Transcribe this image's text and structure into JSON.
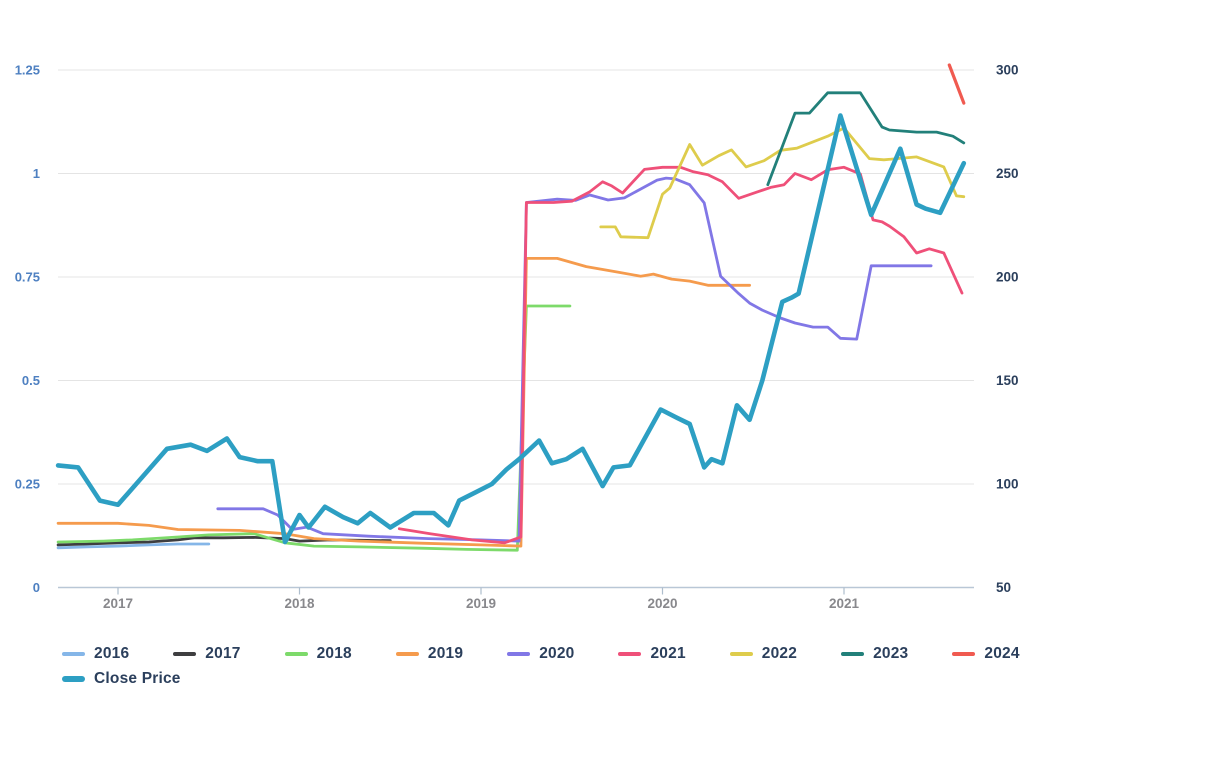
{
  "chart_data": {
    "type": "line",
    "title": "",
    "xlabel": "",
    "ylabel_left": "",
    "ylabel_right": "",
    "grid": true,
    "legend_position": "bottom",
    "x_axis": {
      "tick_labels": [
        "2017",
        "2018",
        "2019",
        "2020",
        "2021"
      ],
      "tick_values": [
        2017,
        2018,
        2019,
        2020,
        2021
      ],
      "range": [
        2016.65,
        2021.73
      ]
    },
    "y_axis_left": {
      "tick_labels": [
        "0",
        "0.25",
        "0.5",
        "0.75",
        "1",
        "1.25"
      ],
      "tick_values": [
        0,
        0.25,
        0.5,
        0.75,
        1,
        1.25
      ],
      "range": [
        0,
        1.3
      ],
      "label_color": "#4e80c1"
    },
    "y_axis_right": {
      "tick_labels": [
        "50",
        "100",
        "150",
        "200",
        "250",
        "300"
      ],
      "tick_values": [
        50,
        100,
        150,
        200,
        250,
        300
      ],
      "range": [
        50,
        310
      ],
      "label_color": "#2b3f5c"
    },
    "series": [
      {
        "name": "2016",
        "color": "#85b6e8",
        "width": 2.8,
        "axis": "left",
        "points": [
          [
            2016.67,
            0.096
          ],
          [
            2016.83,
            0.098
          ],
          [
            2017.0,
            0.1
          ],
          [
            2017.17,
            0.103
          ],
          [
            2017.33,
            0.105
          ],
          [
            2017.5,
            0.105
          ]
        ]
      },
      {
        "name": "2017",
        "color": "#3e3e40",
        "width": 2.8,
        "axis": "left",
        "points": [
          [
            2016.67,
            0.103
          ],
          [
            2016.83,
            0.105
          ],
          [
            2017.0,
            0.108
          ],
          [
            2017.17,
            0.11
          ],
          [
            2017.33,
            0.115
          ],
          [
            2017.42,
            0.12
          ],
          [
            2017.58,
            0.12
          ],
          [
            2017.75,
            0.121
          ],
          [
            2017.92,
            0.118
          ],
          [
            2018.0,
            0.112
          ],
          [
            2018.17,
            0.115
          ],
          [
            2018.33,
            0.114
          ],
          [
            2018.5,
            0.113
          ]
        ]
      },
      {
        "name": "2018",
        "color": "#7dda6a",
        "width": 2.8,
        "axis": "left",
        "points": [
          [
            2016.67,
            0.11
          ],
          [
            2016.92,
            0.112
          ],
          [
            2017.08,
            0.115
          ],
          [
            2017.33,
            0.122
          ],
          [
            2017.5,
            0.127
          ],
          [
            2017.75,
            0.13
          ],
          [
            2017.92,
            0.108
          ],
          [
            2018.08,
            0.1
          ],
          [
            2018.33,
            0.098
          ],
          [
            2018.67,
            0.095
          ],
          [
            2018.92,
            0.092
          ],
          [
            2019.2,
            0.09
          ],
          [
            2019.25,
            0.68
          ],
          [
            2019.49,
            0.68
          ]
        ]
      },
      {
        "name": "2019",
        "color": "#f59b4d",
        "width": 2.8,
        "axis": "left",
        "points": [
          [
            2016.67,
            0.155
          ],
          [
            2017.0,
            0.155
          ],
          [
            2017.17,
            0.15
          ],
          [
            2017.33,
            0.14
          ],
          [
            2017.67,
            0.138
          ],
          [
            2017.92,
            0.13
          ],
          [
            2018.08,
            0.118
          ],
          [
            2018.33,
            0.112
          ],
          [
            2018.67,
            0.107
          ],
          [
            2019.0,
            0.103
          ],
          [
            2019.22,
            0.1
          ],
          [
            2019.25,
            0.795
          ],
          [
            2019.42,
            0.795
          ],
          [
            2019.58,
            0.775
          ],
          [
            2019.75,
            0.762
          ],
          [
            2019.88,
            0.752
          ],
          [
            2019.95,
            0.757
          ],
          [
            2020.05,
            0.745
          ],
          [
            2020.15,
            0.74
          ],
          [
            2020.25,
            0.73
          ],
          [
            2020.48,
            0.73
          ]
        ]
      },
      {
        "name": "2020",
        "color": "#8177e6",
        "width": 2.8,
        "axis": "left",
        "points": [
          [
            2017.55,
            0.19
          ],
          [
            2017.8,
            0.19
          ],
          [
            2017.88,
            0.175
          ],
          [
            2017.96,
            0.14
          ],
          [
            2018.04,
            0.146
          ],
          [
            2018.13,
            0.13
          ],
          [
            2018.38,
            0.124
          ],
          [
            2018.71,
            0.118
          ],
          [
            2019.0,
            0.115
          ],
          [
            2019.21,
            0.112
          ],
          [
            2019.25,
            0.93
          ],
          [
            2019.42,
            0.938
          ],
          [
            2019.52,
            0.935
          ],
          [
            2019.6,
            0.948
          ],
          [
            2019.7,
            0.936
          ],
          [
            2019.79,
            0.941
          ],
          [
            2019.97,
            0.984
          ],
          [
            2020.02,
            0.989
          ],
          [
            2020.07,
            0.987
          ],
          [
            2020.15,
            0.973
          ],
          [
            2020.23,
            0.929
          ],
          [
            2020.32,
            0.752
          ],
          [
            2020.42,
            0.71
          ],
          [
            2020.48,
            0.687
          ],
          [
            2020.55,
            0.67
          ],
          [
            2020.65,
            0.651
          ],
          [
            2020.73,
            0.639
          ],
          [
            2020.83,
            0.629
          ],
          [
            2020.91,
            0.629
          ],
          [
            2020.98,
            0.602
          ],
          [
            2021.07,
            0.6
          ],
          [
            2021.15,
            0.777
          ],
          [
            2021.48,
            0.777
          ]
        ]
      },
      {
        "name": "2021",
        "color": "#ef5079",
        "width": 2.8,
        "axis": "left",
        "points": [
          [
            2018.55,
            0.142
          ],
          [
            2018.72,
            0.13
          ],
          [
            2018.95,
            0.115
          ],
          [
            2019.13,
            0.108
          ],
          [
            2019.22,
            0.122
          ],
          [
            2019.25,
            0.93
          ],
          [
            2019.4,
            0.93
          ],
          [
            2019.5,
            0.933
          ],
          [
            2019.6,
            0.956
          ],
          [
            2019.67,
            0.98
          ],
          [
            2019.72,
            0.97
          ],
          [
            2019.78,
            0.953
          ],
          [
            2019.9,
            1.01
          ],
          [
            2020.0,
            1.015
          ],
          [
            2020.1,
            1.015
          ],
          [
            2020.17,
            1.004
          ],
          [
            2020.25,
            0.997
          ],
          [
            2020.33,
            0.98
          ],
          [
            2020.42,
            0.94
          ],
          [
            2020.52,
            0.955
          ],
          [
            2020.6,
            0.967
          ],
          [
            2020.67,
            0.973
          ],
          [
            2020.73,
            1.0
          ],
          [
            2020.82,
            0.985
          ],
          [
            2020.91,
            1.009
          ],
          [
            2021.0,
            1.015
          ],
          [
            2021.09,
            0.999
          ],
          [
            2021.16,
            0.888
          ],
          [
            2021.21,
            0.883
          ],
          [
            2021.25,
            0.873
          ],
          [
            2021.33,
            0.847
          ],
          [
            2021.4,
            0.808
          ],
          [
            2021.47,
            0.818
          ],
          [
            2021.55,
            0.808
          ],
          [
            2021.65,
            0.711
          ]
        ]
      },
      {
        "name": "2022",
        "color": "#decc4c",
        "width": 2.8,
        "axis": "left",
        "points": [
          [
            2019.66,
            0.871
          ],
          [
            2019.74,
            0.871
          ],
          [
            2019.77,
            0.847
          ],
          [
            2019.92,
            0.845
          ],
          [
            2020.0,
            0.95
          ],
          [
            2020.04,
            0.965
          ],
          [
            2020.15,
            1.07
          ],
          [
            2020.22,
            1.02
          ],
          [
            2020.31,
            1.043
          ],
          [
            2020.38,
            1.057
          ],
          [
            2020.46,
            1.016
          ],
          [
            2020.56,
            1.031
          ],
          [
            2020.65,
            1.056
          ],
          [
            2020.74,
            1.061
          ],
          [
            2020.91,
            1.09
          ],
          [
            2021.0,
            1.11
          ],
          [
            2021.14,
            1.036
          ],
          [
            2021.22,
            1.033
          ],
          [
            2021.4,
            1.04
          ],
          [
            2021.55,
            1.016
          ],
          [
            2021.62,
            0.946
          ],
          [
            2021.66,
            0.944
          ]
        ]
      },
      {
        "name": "2023",
        "color": "#22807a",
        "width": 2.8,
        "axis": "left",
        "points": [
          [
            2020.58,
            0.973
          ],
          [
            2020.73,
            1.146
          ],
          [
            2020.81,
            1.146
          ],
          [
            2020.91,
            1.195
          ],
          [
            2021.09,
            1.195
          ],
          [
            2021.21,
            1.112
          ],
          [
            2021.25,
            1.105
          ],
          [
            2021.4,
            1.1
          ],
          [
            2021.51,
            1.1
          ],
          [
            2021.6,
            1.09
          ],
          [
            2021.66,
            1.074
          ]
        ]
      },
      {
        "name": "2024",
        "color": "#f05a50",
        "width": 3.2,
        "axis": "left",
        "points": [
          [
            2021.58,
            1.262
          ],
          [
            2021.66,
            1.17
          ]
        ]
      }
    ],
    "close_price": {
      "name": "Close Price",
      "color": "#2d9fc3",
      "width": 4.6,
      "axis": "right",
      "points": [
        [
          2016.67,
          109
        ],
        [
          2016.78,
          108
        ],
        [
          2016.9,
          92
        ],
        [
          2017.0,
          90
        ],
        [
          2017.12,
          102
        ],
        [
          2017.27,
          117
        ],
        [
          2017.4,
          119
        ],
        [
          2017.49,
          116
        ],
        [
          2017.6,
          122
        ],
        [
          2017.67,
          113
        ],
        [
          2017.77,
          111
        ],
        [
          2017.85,
          111
        ],
        [
          2017.92,
          72
        ],
        [
          2018.0,
          85
        ],
        [
          2018.05,
          79
        ],
        [
          2018.14,
          89
        ],
        [
          2018.24,
          84
        ],
        [
          2018.32,
          81
        ],
        [
          2018.39,
          86
        ],
        [
          2018.5,
          79
        ],
        [
          2018.63,
          86
        ],
        [
          2018.74,
          86
        ],
        [
          2018.82,
          80
        ],
        [
          2018.88,
          92
        ],
        [
          2018.97,
          96
        ],
        [
          2019.06,
          100
        ],
        [
          2019.14,
          107
        ],
        [
          2019.21,
          112
        ],
        [
          2019.32,
          121
        ],
        [
          2019.39,
          110
        ],
        [
          2019.47,
          112
        ],
        [
          2019.56,
          117
        ],
        [
          2019.67,
          99
        ],
        [
          2019.73,
          108
        ],
        [
          2019.82,
          109
        ],
        [
          2019.99,
          136
        ],
        [
          2020.08,
          132
        ],
        [
          2020.15,
          129
        ],
        [
          2020.23,
          108
        ],
        [
          2020.27,
          112
        ],
        [
          2020.33,
          110
        ],
        [
          2020.41,
          138
        ],
        [
          2020.48,
          131
        ],
        [
          2020.55,
          150
        ],
        [
          2020.66,
          188
        ],
        [
          2020.71,
          190
        ],
        [
          2020.75,
          192
        ],
        [
          2020.98,
          278
        ],
        [
          2021.15,
          230
        ],
        [
          2021.31,
          262
        ],
        [
          2021.4,
          235
        ],
        [
          2021.45,
          233
        ],
        [
          2021.53,
          231
        ],
        [
          2021.66,
          255
        ]
      ]
    }
  },
  "legend": {
    "rows": [
      [
        {
          "label": "2016",
          "color": "#85b6e8",
          "thick": false
        },
        {
          "label": "2017",
          "color": "#3e3e40",
          "thick": false
        },
        {
          "label": "2018",
          "color": "#7dda6a",
          "thick": false
        },
        {
          "label": "2019",
          "color": "#f59b4d",
          "thick": false
        },
        {
          "label": "2020",
          "color": "#8177e6",
          "thick": false
        },
        {
          "label": "2021",
          "color": "#ef5079",
          "thick": false
        },
        {
          "label": "2022",
          "color": "#decc4c",
          "thick": false
        },
        {
          "label": "2023",
          "color": "#22807a",
          "thick": false
        },
        {
          "label": "2024",
          "color": "#f05a50",
          "thick": false
        }
      ],
      [
        {
          "label": "Close Price",
          "color": "#2d9fc3",
          "thick": true
        }
      ]
    ]
  },
  "colors": {
    "grid": "#e4e4e4",
    "axis_baseline": "#b9c7d6",
    "tick": "#aebecd",
    "left_labels": "#4e80c1",
    "right_labels": "#2b3f5c",
    "x_labels": "#88888c"
  }
}
